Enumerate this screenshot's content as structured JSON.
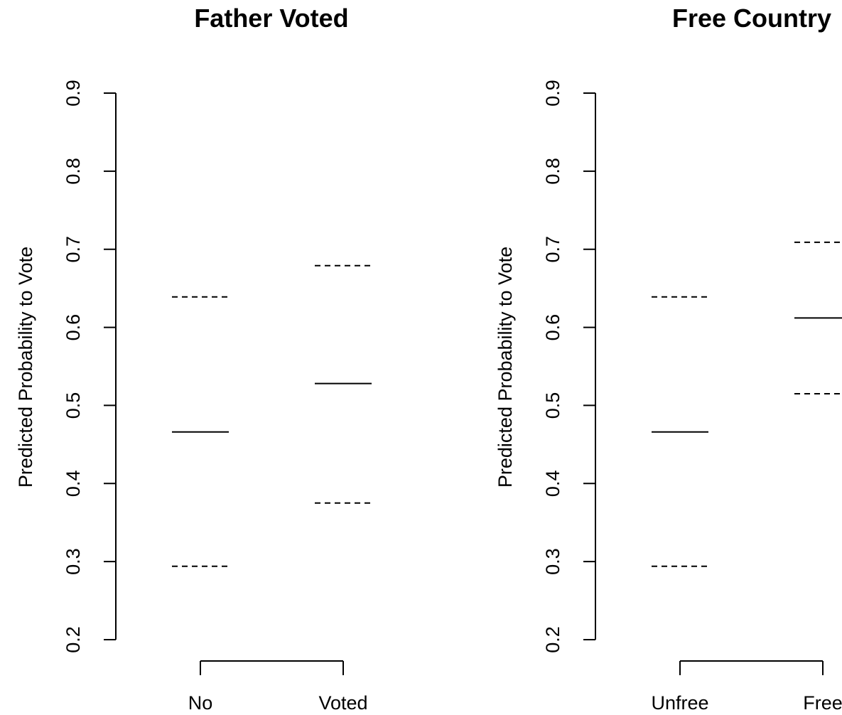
{
  "chart_data": [
    {
      "type": "errorbar",
      "title": "Father Voted",
      "xlabel": "",
      "ylabel": "Predicted Probability to Vote",
      "ylim": [
        0.2,
        0.9
      ],
      "yticks": [
        "0.2",
        "0.3",
        "0.4",
        "0.5",
        "0.6",
        "0.7",
        "0.8",
        "0.9"
      ],
      "categories": [
        "No",
        "Voted"
      ],
      "estimate": [
        0.466,
        0.528
      ],
      "lower": [
        0.294,
        0.375
      ],
      "upper": [
        0.639,
        0.679
      ]
    },
    {
      "type": "errorbar",
      "title": "Free Country",
      "xlabel": "",
      "ylabel": "Predicted Probability to Vote",
      "ylim": [
        0.2,
        0.9
      ],
      "yticks": [
        "0.2",
        "0.3",
        "0.4",
        "0.5",
        "0.6",
        "0.7",
        "0.8",
        "0.9"
      ],
      "categories": [
        "Unfree",
        "Free"
      ],
      "estimate": [
        0.466,
        0.612
      ],
      "lower": [
        0.294,
        0.515
      ],
      "upper": [
        0.639,
        0.709
      ]
    }
  ]
}
